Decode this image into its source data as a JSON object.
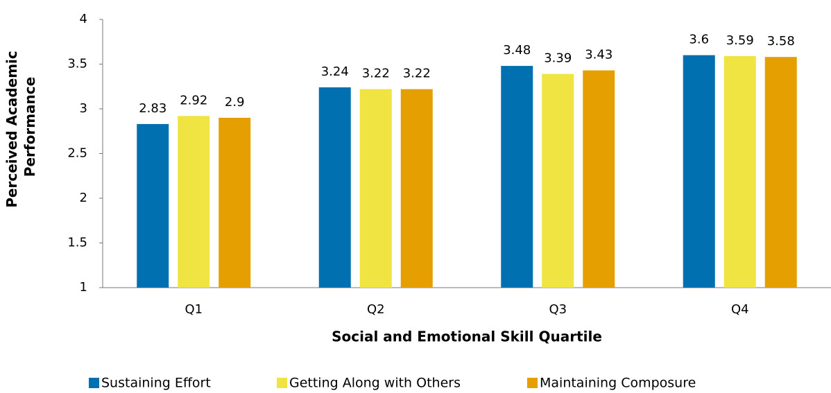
{
  "chart_data": {
    "type": "bar",
    "xlabel": "Social and Emotional Skill Quartile",
    "ylabel": [
      "Perceived Academic",
      "Performance"
    ],
    "categories": [
      "Q1",
      "Q2",
      "Q3",
      "Q4"
    ],
    "series": [
      {
        "name": "Sustaining Effort",
        "color": "#0070b0",
        "values": [
          2.83,
          3.24,
          3.48,
          3.6
        ]
      },
      {
        "name": "Getting Along with Others",
        "color": "#f0e442",
        "values": [
          2.92,
          3.22,
          3.39,
          3.59
        ]
      },
      {
        "name": "Maintaining Composure",
        "color": "#e69f00",
        "values": [
          2.9,
          3.22,
          3.43,
          3.58
        ]
      }
    ],
    "ylim": [
      1,
      4
    ],
    "yticks": [
      1,
      1.5,
      2,
      2.5,
      3,
      3.5,
      4
    ],
    "grid": false,
    "legend": "bottom"
  }
}
